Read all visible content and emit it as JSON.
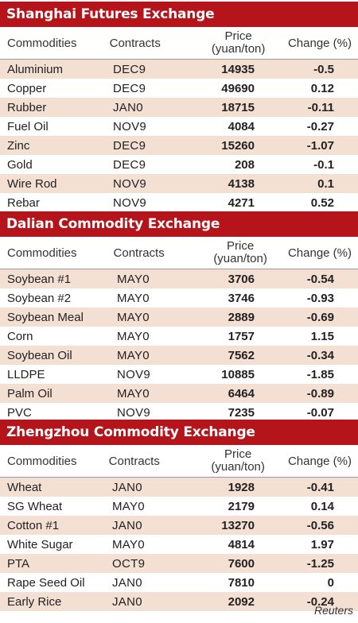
{
  "sections": [
    {
      "title": "Shanghai Futures Exchange",
      "headers": {
        "commodities": "Commodities",
        "contracts": "Contracts",
        "price_line1": "Price",
        "price_line2": "(yuan/ton)",
        "change": "Change (%)"
      },
      "rows": [
        {
          "commodity": "Aluminium",
          "contract": "DEC9",
          "price": "14935",
          "change": "-0.5"
        },
        {
          "commodity": "Copper",
          "contract": "DEC9",
          "price": "49690",
          "change": "0.12"
        },
        {
          "commodity": "Rubber",
          "contract": "JAN0",
          "price": "18715",
          "change": "-0.11"
        },
        {
          "commodity": "Fuel Oil",
          "contract": "NOV9",
          "price": "4084",
          "change": "-0.27"
        },
        {
          "commodity": "Zinc",
          "contract": "DEC9",
          "price": "15260",
          "change": "-1.07"
        },
        {
          "commodity": "Gold",
          "contract": "DEC9",
          "price": "208",
          "change": "-0.1"
        },
        {
          "commodity": "Wire Rod",
          "contract": "NOV9",
          "price": "4138",
          "change": "0.1"
        },
        {
          "commodity": "Rebar",
          "contract": "NOV9",
          "price": "4271",
          "change": "0.52"
        }
      ]
    },
    {
      "title": "Dalian Commodity Exchange",
      "headers": {
        "commodities": "Commodities",
        "contracts": "Contracts",
        "price_line1": "Price",
        "price_line2": "(yuan/ton)",
        "change": "Change (%)"
      },
      "rows": [
        {
          "commodity": "Soybean #1",
          "contract": "MAY0",
          "price": "3706",
          "change": "-0.54"
        },
        {
          "commodity": "Soybean #2",
          "contract": "MAY0",
          "price": "3746",
          "change": "-0.93"
        },
        {
          "commodity": "Soybean Meal",
          "contract": "MAY0",
          "price": "2889",
          "change": "-0.69"
        },
        {
          "commodity": "Corn",
          "contract": "MAY0",
          "price": "1757",
          "change": "1.15"
        },
        {
          "commodity": "Soybean Oil",
          "contract": "MAY0",
          "price": "7562",
          "change": "-0.34"
        },
        {
          "commodity": "LLDPE",
          "contract": "NOV9",
          "price": "10885",
          "change": "-1.85"
        },
        {
          "commodity": "Palm Oil",
          "contract": "MAY0",
          "price": "6464",
          "change": "-0.89"
        },
        {
          "commodity": "PVC",
          "contract": "NOV9",
          "price": "7235",
          "change": "-0.07"
        }
      ]
    },
    {
      "title": "Zhengzhou Commodity Exchange",
      "headers": {
        "commodities": "Commodities",
        "contracts": "Contracts",
        "price_line1": "Price",
        "price_line2": "(yuan/ton)",
        "change": "Change (%)"
      },
      "rows": [
        {
          "commodity": "Wheat",
          "contract": "JAN0",
          "price": "1928",
          "change": "-0.41"
        },
        {
          "commodity": "SG Wheat",
          "contract": "MAY0",
          "price": "2179",
          "change": "0.14"
        },
        {
          "commodity": "Cotton #1",
          "contract": "JAN0",
          "price": "13270",
          "change": "-0.56"
        },
        {
          "commodity": "White Sugar",
          "contract": "MAY0",
          "price": "4814",
          "change": "1.97"
        },
        {
          "commodity": "PTA",
          "contract": "OCT9",
          "price": "7600",
          "change": "-1.25"
        },
        {
          "commodity": "Rape Seed Oil",
          "contract": "JAN0",
          "price": "7810",
          "change": "0"
        },
        {
          "commodity": "Early Rice",
          "contract": "JAN0",
          "price": "2092",
          "change": "-0.24"
        }
      ]
    }
  ],
  "footer": "Reuters",
  "colors": {
    "title_bar": "#b4141a",
    "row_shade": "#f4dfd3"
  }
}
